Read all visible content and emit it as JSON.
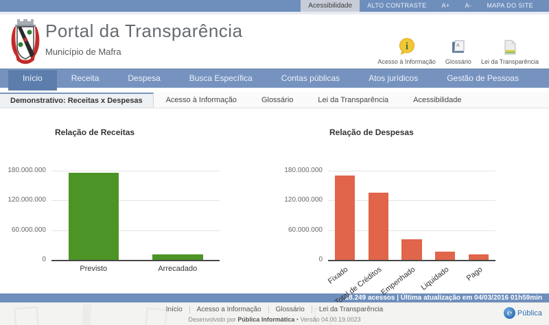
{
  "topbar": {
    "items": [
      {
        "label": "Acessibilidade",
        "active": true
      },
      {
        "label": "ALTO CONTRASTE"
      },
      {
        "label": "A+"
      },
      {
        "label": "A-"
      },
      {
        "label": "MAPA DO SITE"
      }
    ]
  },
  "header": {
    "title": "Portal da Transparência",
    "subtitle": "Município de Mafra",
    "quick_links": [
      {
        "label": "Acesso à Informação",
        "icon": "info-balloon-icon"
      },
      {
        "label": "Glossário",
        "icon": "glossary-book-icon"
      },
      {
        "label": "Lei da Transparência",
        "icon": "law-document-icon"
      }
    ]
  },
  "nav": {
    "items": [
      {
        "label": "Início",
        "active": true
      },
      {
        "label": "Receita"
      },
      {
        "label": "Despesa"
      },
      {
        "label": "Busca Específica"
      },
      {
        "label": "Contas públicas"
      },
      {
        "label": "Atos jurídicos"
      },
      {
        "label": "Gestão de Pessoas"
      }
    ]
  },
  "tabs": {
    "items": [
      {
        "label": "Demonstrativo: Receitas x Despesas",
        "active": true
      },
      {
        "label": "Acesso à Informação"
      },
      {
        "label": "Glossário"
      },
      {
        "label": "Lei da Transparência"
      },
      {
        "label": "Acessibilidade"
      }
    ]
  },
  "chart_data": [
    {
      "type": "bar",
      "title": "Relação de Receitas",
      "categories": [
        "Previsto",
        "Arrecadado"
      ],
      "values": [
        176000000,
        11500000
      ],
      "bar_color": "#4d9427",
      "ylim": [
        0,
        180000000
      ],
      "ytick_labels": [
        "180.000.000",
        "120.000.000",
        "60.000.000",
        "0"
      ],
      "grid": true,
      "legend": "none",
      "label_rotation": 0
    },
    {
      "type": "bar",
      "title": "Relação de Despesas",
      "categories": [
        "Fixado",
        "Total de Créditos",
        "Empenhado",
        "Liquidado",
        "Pago"
      ],
      "values": [
        171000000,
        136000000,
        42000000,
        16000000,
        11000000
      ],
      "bar_color": "#e0654a",
      "ylim": [
        0,
        180000000
      ],
      "ytick_labels": [
        "180.000.000",
        "120.000.000",
        "60.000.000",
        "0"
      ],
      "grid": true,
      "legend": "none",
      "label_rotation": -38
    }
  ],
  "statsbar": {
    "text": "18.249 acessos | Última atualização em 04/03/2016 01h59min"
  },
  "footer": {
    "links": [
      {
        "label": "Início"
      },
      {
        "label": "Acesso a Informação"
      },
      {
        "label": "Glossário"
      },
      {
        "label": "Lei da Transparência"
      }
    ],
    "credits_prefix": "Desenvolvido por ",
    "credits_developer": "Pública Informática",
    "credits_suffix": " • Versão 04.00.19.0023",
    "logo_text": "Pública"
  },
  "colors": {
    "topbar_blue": "#6e8ebc",
    "nav_blue": "#7693c0",
    "nav_active_blue": "#5d7dad",
    "tab_accent": "#7b94ba",
    "receitas_green": "#4d9427",
    "despesas_red": "#e0654a"
  }
}
